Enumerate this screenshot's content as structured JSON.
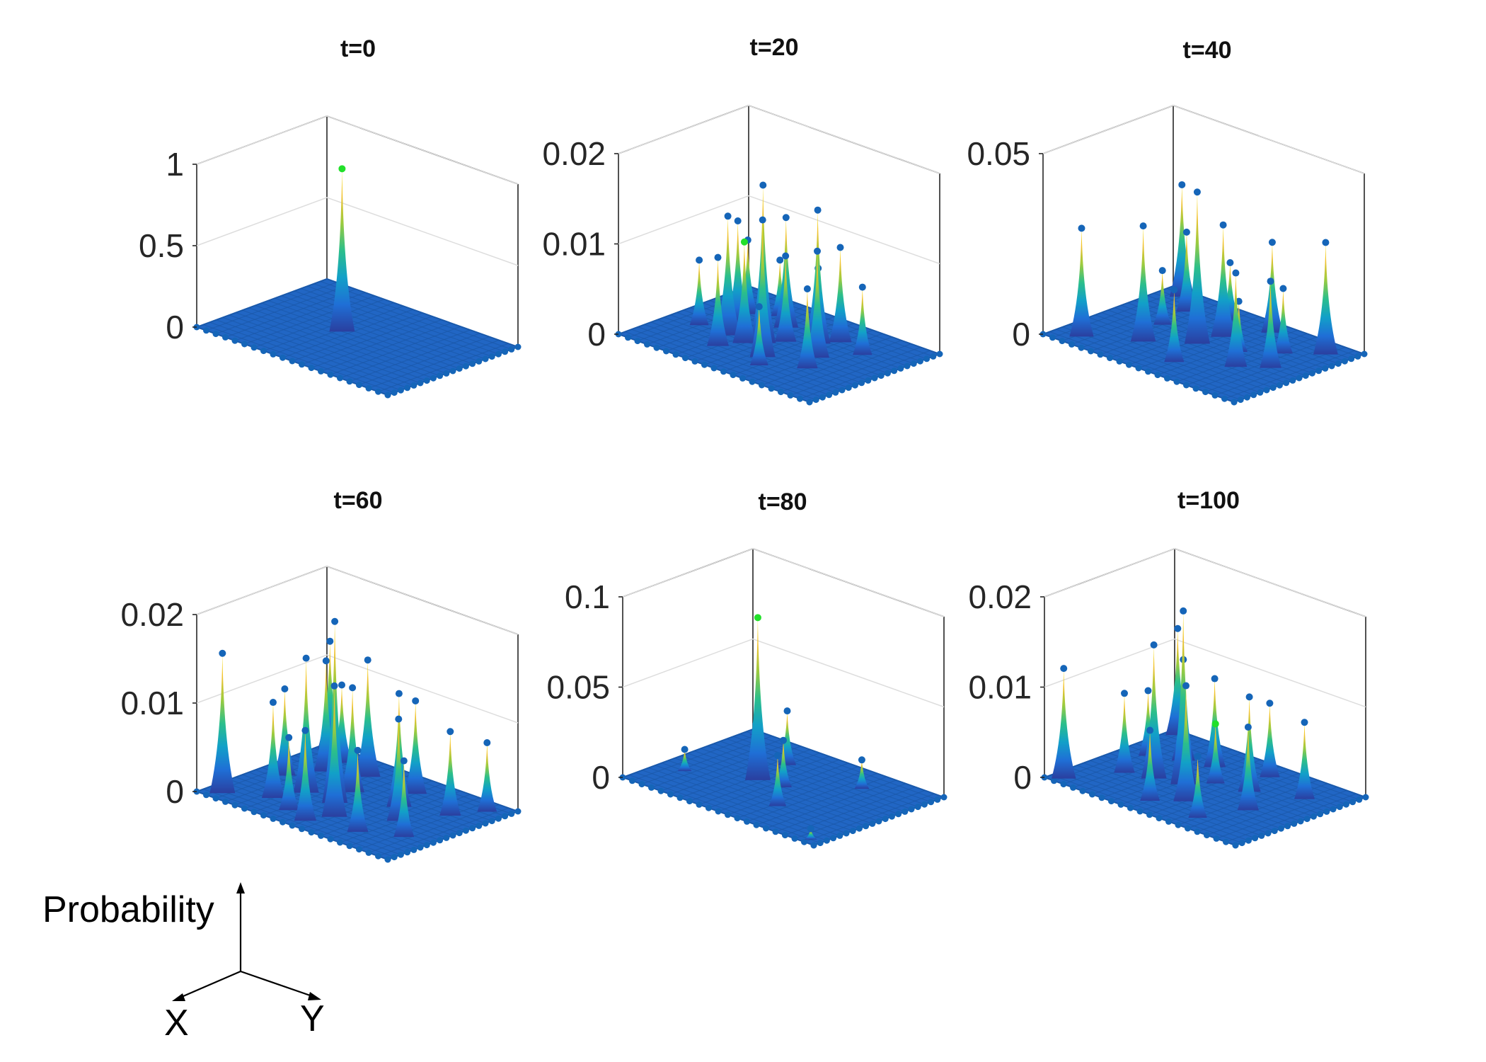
{
  "figure": {
    "legend": {
      "z_label": "Probability",
      "x_label": "X",
      "y_label": "Y"
    }
  },
  "colors": {
    "base": "#2166c4",
    "marker": "#1565b8",
    "highlight_marker": "#22e02a",
    "colormap": [
      "#2a3f9f",
      "#1f6fd6",
      "#12a0c8",
      "#2cbf8a",
      "#9ccb3e",
      "#f2c12e",
      "#f6e51f"
    ]
  },
  "chart_data": [
    {
      "type": "surface3d",
      "title": "t=0",
      "zlim": [
        0,
        1
      ],
      "zticks": [
        0,
        0.5,
        1
      ],
      "ztick_labels": [
        "0",
        "0.5",
        "1"
      ],
      "peaks": [
        {
          "x": 0.42,
          "y": 0.5,
          "z": 1.0,
          "highlight": true
        }
      ]
    },
    {
      "type": "surface3d",
      "title": "t=20",
      "zlim": [
        0,
        0.02
      ],
      "zticks": [
        0,
        0.01,
        0.02
      ],
      "ztick_labels": [
        "0",
        "0.01",
        "0.02"
      ],
      "peaks": [
        {
          "x": 0.45,
          "y": 0.55,
          "z": 0.0175
        },
        {
          "x": 0.3,
          "y": 0.6,
          "z": 0.0132
        },
        {
          "x": 0.6,
          "y": 0.35,
          "z": 0.0148
        },
        {
          "x": 0.25,
          "y": 0.45,
          "z": 0.0115
        },
        {
          "x": 0.55,
          "y": 0.7,
          "z": 0.0152
        },
        {
          "x": 0.7,
          "y": 0.5,
          "z": 0.0118
        },
        {
          "x": 0.4,
          "y": 0.3,
          "z": 0.0122
        },
        {
          "x": 0.35,
          "y": 0.75,
          "z": 0.0098
        },
        {
          "x": 0.65,
          "y": 0.25,
          "z": 0.0105
        },
        {
          "x": 0.2,
          "y": 0.3,
          "z": 0.0082
        },
        {
          "x": 0.5,
          "y": 0.45,
          "z": 0.0095
        },
        {
          "x": 0.75,
          "y": 0.65,
          "z": 0.0088
        },
        {
          "x": 0.15,
          "y": 0.6,
          "z": 0.0072
        },
        {
          "x": 0.8,
          "y": 0.3,
          "z": 0.0075
        },
        {
          "x": 0.5,
          "y": 0.2,
          "z": 0.0068
        },
        {
          "x": 0.3,
          "y": 0.2,
          "z": 0.0062
        },
        {
          "x": 0.6,
          "y": 0.8,
          "z": 0.0065
        },
        {
          "x": 0.4,
          "y": 0.62,
          "z": 0.0112,
          "highlight": true
        }
      ]
    },
    {
      "type": "surface3d",
      "title": "t=40",
      "zlim": [
        0,
        0.05
      ],
      "zticks": [
        0,
        0.05
      ],
      "ztick_labels": [
        "0",
        "0.05"
      ],
      "peaks": [
        {
          "x": 0.48,
          "y": 0.52,
          "z": 0.042
        },
        {
          "x": 0.1,
          "y": 0.08,
          "z": 0.031
        },
        {
          "x": 0.12,
          "y": 0.88,
          "z": 0.03
        },
        {
          "x": 0.5,
          "y": 0.35,
          "z": 0.031
        },
        {
          "x": 0.32,
          "y": 0.7,
          "z": 0.032
        },
        {
          "x": 0.75,
          "y": 0.62,
          "z": 0.026
        },
        {
          "x": 0.85,
          "y": 0.5,
          "z": 0.024
        },
        {
          "x": 0.9,
          "y": 0.15,
          "z": 0.031
        },
        {
          "x": 0.22,
          "y": 0.22,
          "z": 0.022
        },
        {
          "x": 0.6,
          "y": 0.12,
          "z": 0.025
        },
        {
          "x": 0.78,
          "y": 0.3,
          "z": 0.018
        },
        {
          "x": 0.4,
          "y": 0.15,
          "z": 0.016
        },
        {
          "x": 0.55,
          "y": 0.8,
          "z": 0.02
        },
        {
          "x": 0.25,
          "y": 0.45,
          "z": 0.015
        },
        {
          "x": 0.65,
          "y": 0.45,
          "z": 0.014
        }
      ]
    },
    {
      "type": "surface3d",
      "title": "t=60",
      "zlim": [
        0,
        0.02
      ],
      "zticks": [
        0,
        0.01,
        0.02
      ],
      "ztick_labels": [
        "0",
        "0.01",
        "0.02"
      ],
      "peaks": [
        {
          "x": 0.45,
          "y": 0.6,
          "z": 0.0205
        },
        {
          "x": 0.05,
          "y": 0.05,
          "z": 0.0122
        },
        {
          "x": 0.08,
          "y": 0.92,
          "z": 0.0158
        },
        {
          "x": 0.3,
          "y": 0.6,
          "z": 0.0152
        },
        {
          "x": 0.55,
          "y": 0.75,
          "z": 0.0148
        },
        {
          "x": 0.2,
          "y": 0.3,
          "z": 0.0125
        },
        {
          "x": 0.65,
          "y": 0.4,
          "z": 0.0128
        },
        {
          "x": 0.35,
          "y": 0.2,
          "z": 0.0132
        },
        {
          "x": 0.75,
          "y": 0.55,
          "z": 0.0115
        },
        {
          "x": 0.42,
          "y": 0.42,
          "z": 0.0118
        },
        {
          "x": 0.25,
          "y": 0.78,
          "z": 0.0108
        },
        {
          "x": 0.6,
          "y": 0.2,
          "z": 0.0105
        },
        {
          "x": 0.12,
          "y": 0.5,
          "z": 0.0098
        },
        {
          "x": 0.85,
          "y": 0.3,
          "z": 0.0095
        },
        {
          "x": 0.5,
          "y": 0.9,
          "z": 0.0102
        },
        {
          "x": 0.72,
          "y": 0.82,
          "z": 0.0092
        },
        {
          "x": 0.88,
          "y": 0.7,
          "z": 0.0086
        },
        {
          "x": 0.18,
          "y": 0.15,
          "z": 0.0088
        },
        {
          "x": 0.38,
          "y": 0.85,
          "z": 0.0082
        },
        {
          "x": 0.92,
          "y": 0.12,
          "z": 0.0078
        }
      ]
    },
    {
      "type": "surface3d",
      "title": "t=80",
      "zlim": [
        0,
        0.1
      ],
      "zticks": [
        0,
        0.05,
        0.1
      ],
      "ztick_labels": [
        "0",
        "0.05",
        "0.1"
      ],
      "peaks": [
        {
          "x": 0.38,
          "y": 0.52,
          "z": 0.09,
          "highlight": true
        },
        {
          "x": 0.35,
          "y": 0.25,
          "z": 0.03
        },
        {
          "x": 0.62,
          "y": 0.72,
          "z": 0.028
        },
        {
          "x": 0.5,
          "y": 0.5,
          "z": 0.026
        },
        {
          "x": 0.72,
          "y": 0.22,
          "z": 0.016
        },
        {
          "x": 0.12,
          "y": 0.7,
          "z": 0.012
        },
        {
          "x": 0.05,
          "y": 0.05,
          "z": 0.006
        },
        {
          "x": 0.95,
          "y": 0.95,
          "z": 0.006
        }
      ]
    },
    {
      "type": "surface3d",
      "title": "t=100",
      "zlim": [
        0,
        0.02
      ],
      "zticks": [
        0,
        0.01,
        0.02
      ],
      "ztick_labels": [
        "0",
        "0.01",
        "0.02"
      ],
      "peaks": [
        {
          "x": 0.42,
          "y": 0.55,
          "z": 0.0192
        },
        {
          "x": 0.05,
          "y": 0.05,
          "z": 0.0118
        },
        {
          "x": 0.06,
          "y": 0.94,
          "z": 0.0122
        },
        {
          "x": 0.3,
          "y": 0.6,
          "z": 0.0148
        },
        {
          "x": 0.55,
          "y": 0.72,
          "z": 0.0128
        },
        {
          "x": 0.25,
          "y": 0.3,
          "z": 0.0112
        },
        {
          "x": 0.65,
          "y": 0.38,
          "z": 0.0105
        },
        {
          "x": 0.38,
          "y": 0.25,
          "z": 0.0098
        },
        {
          "x": 0.78,
          "y": 0.58,
          "z": 0.0092
        },
        {
          "x": 0.18,
          "y": 0.65,
          "z": 0.0088
        },
        {
          "x": 0.6,
          "y": 0.15,
          "z": 0.0082
        },
        {
          "x": 0.85,
          "y": 0.25,
          "z": 0.0085
        },
        {
          "x": 0.45,
          "y": 0.85,
          "z": 0.0078
        },
        {
          "x": 0.12,
          "y": 0.38,
          "z": 0.0072
        },
        {
          "x": 0.7,
          "y": 0.85,
          "z": 0.0068
        },
        {
          "x": 0.5,
          "y": 0.42,
          "z": 0.0066,
          "highlight": true
        }
      ]
    }
  ]
}
